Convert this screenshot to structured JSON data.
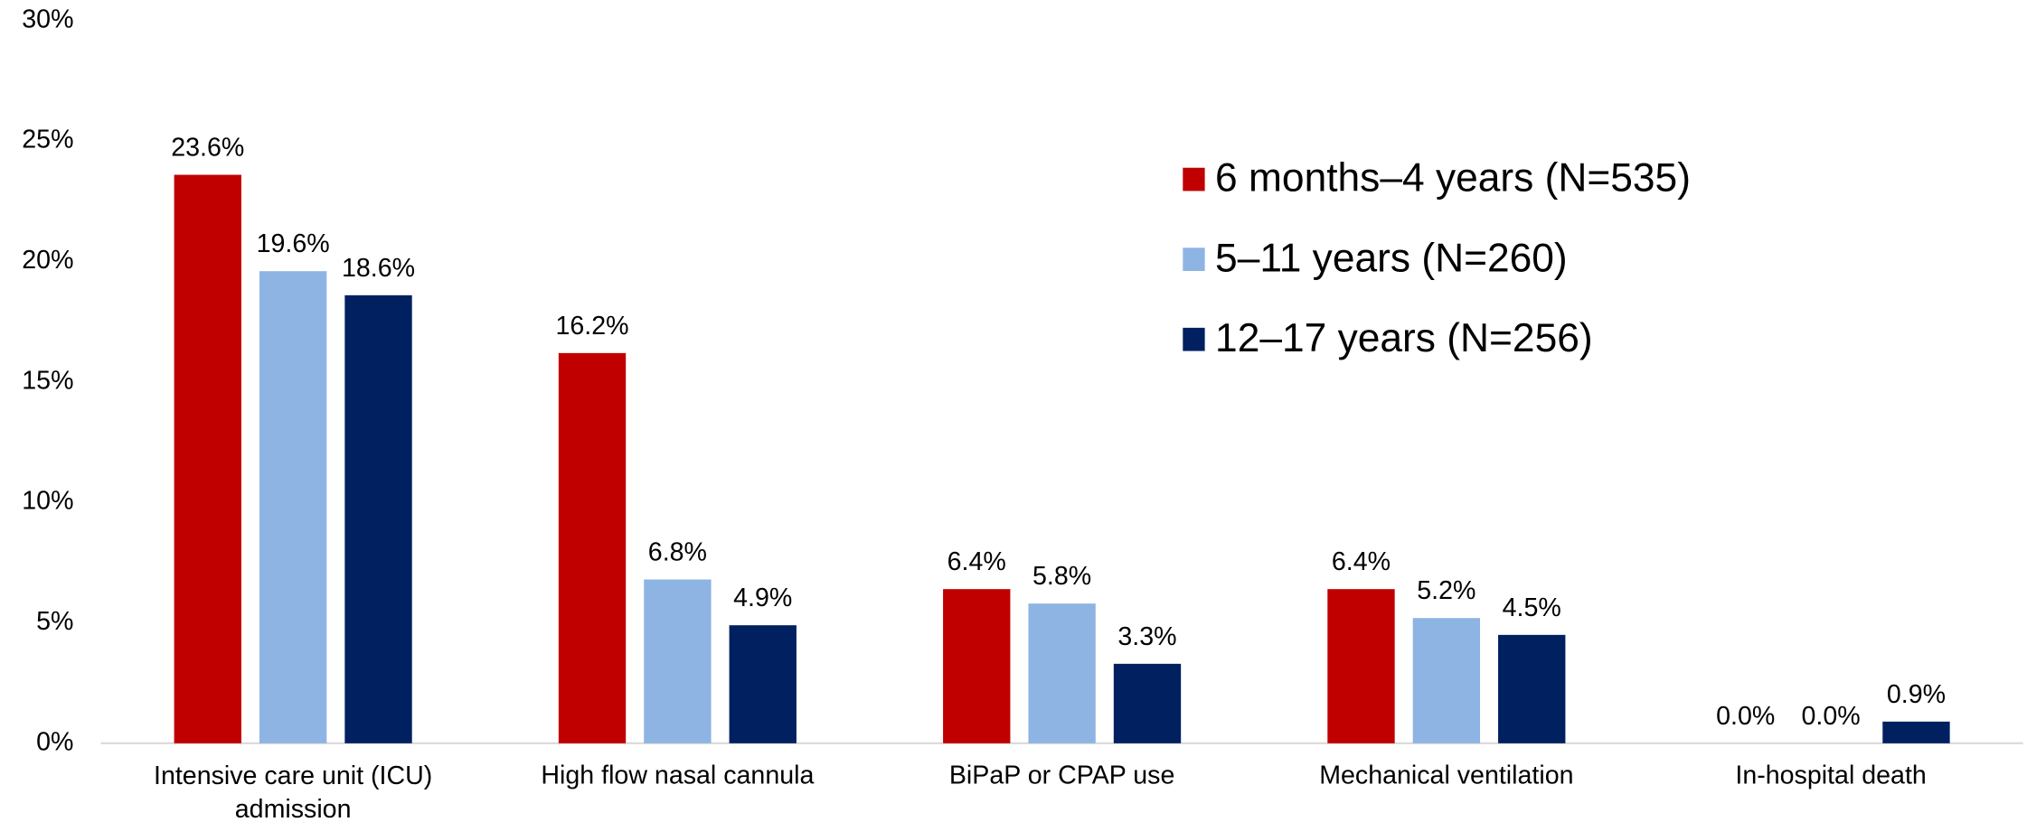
{
  "chart_data": {
    "type": "bar",
    "categories": [
      "Intensive care unit (ICU) admission",
      "High flow nasal cannula",
      "BiPaP or CPAP use",
      "Mechanical ventilation",
      "In-hospital death"
    ],
    "series": [
      {
        "name": "6 months–4 years (N=535)",
        "color": "#c00000",
        "values": [
          23.6,
          16.2,
          6.4,
          6.4,
          0.0
        ],
        "value_labels": [
          "23.6%",
          "16.2%",
          "6.4%",
          "6.4%",
          "0.0%"
        ]
      },
      {
        "name": "5–11 years (N=260)",
        "color": "#8eb4e3",
        "values": [
          19.6,
          6.8,
          5.8,
          5.2,
          0.0
        ],
        "value_labels": [
          "19.6%",
          "6.8%",
          "5.8%",
          "5.2%",
          "0.0%"
        ]
      },
      {
        "name": "12–17 years (N=256)",
        "color": "#002060",
        "values": [
          18.6,
          4.9,
          3.3,
          4.5,
          0.9
        ],
        "value_labels": [
          "18.6%",
          "4.9%",
          "3.3%",
          "4.5%",
          "0.9%"
        ]
      }
    ],
    "ylim": [
      0,
      30
    ],
    "yticks": [
      {
        "value": 0,
        "label": "0%"
      },
      {
        "value": 5,
        "label": "5%"
      },
      {
        "value": 10,
        "label": "10%"
      },
      {
        "value": 15,
        "label": "15%"
      },
      {
        "value": 20,
        "label": "20%"
      },
      {
        "value": 25,
        "label": "25%"
      },
      {
        "value": 30,
        "label": "30%"
      }
    ],
    "grid": false,
    "legend": "upper right"
  }
}
